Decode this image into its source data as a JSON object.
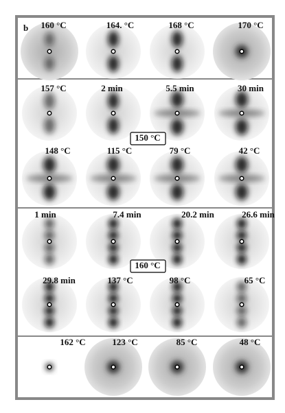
{
  "panel_label": "b",
  "rows": [
    {
      "labels": [
        "160 °C",
        "164. °C",
        "168 °C",
        "170 °C"
      ]
    },
    {
      "labels": [
        "157 °C",
        "2 min",
        "5.5 min",
        "30 min"
      ]
    },
    {
      "labels": [
        "148 °C",
        "115 °C",
        "79 °C",
        "42 °C"
      ]
    },
    {
      "labels": [
        "1 min",
        "7.4 min",
        "20.2 min",
        "26.6 min"
      ]
    },
    {
      "labels": [
        "29.8 min",
        "137 °C",
        "98 °C",
        "65 °C"
      ]
    },
    {
      "labels": [
        "162 °C",
        "123 °C",
        "85 °C",
        "48 °C"
      ]
    }
  ],
  "boxes": [
    "150 °C",
    "160 °C"
  ]
}
